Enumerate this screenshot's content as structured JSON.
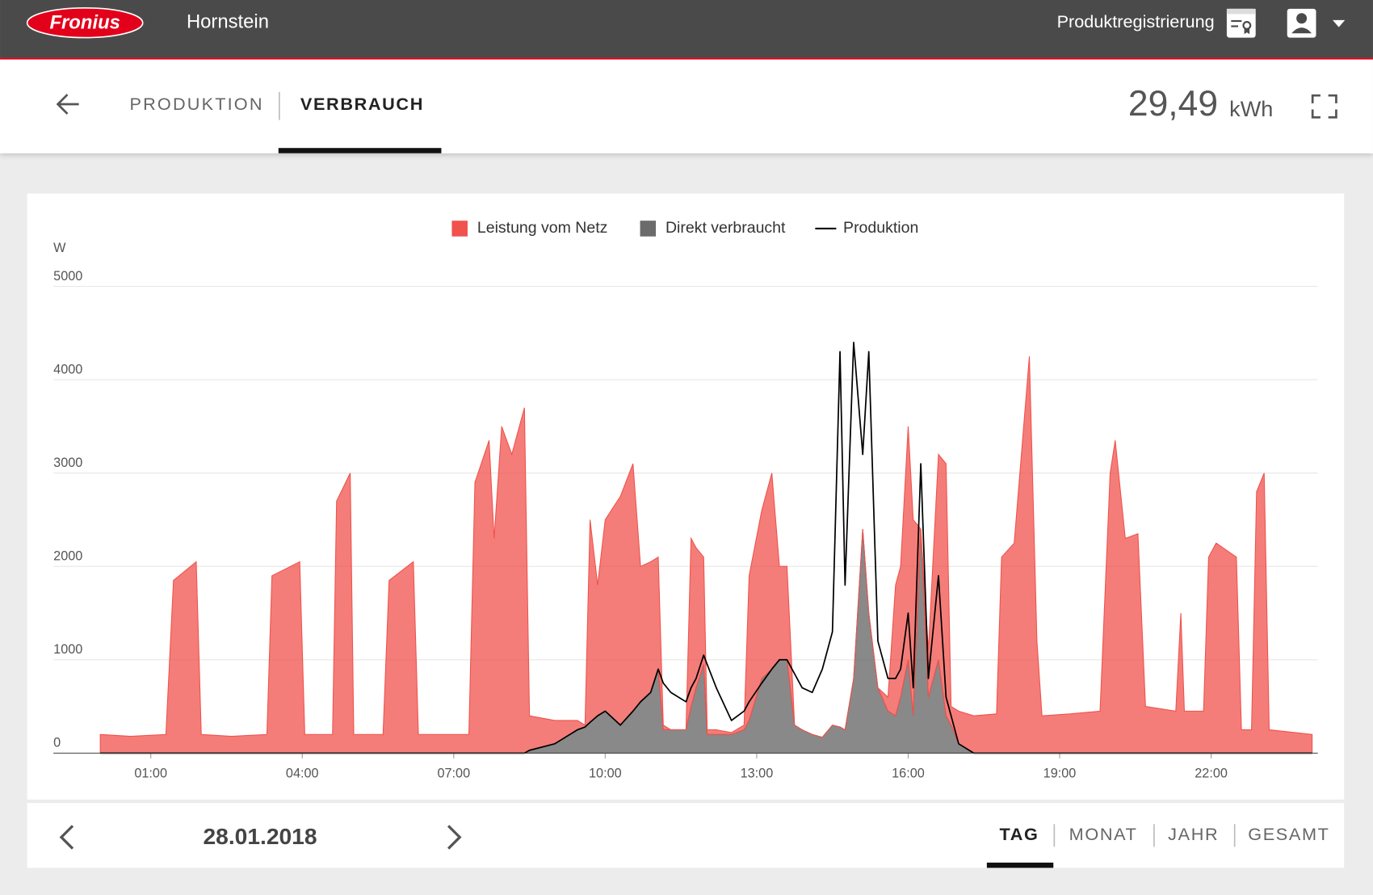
{
  "header": {
    "logo": "Fronius",
    "location": "Hornstein",
    "registration": "Produktregistrierung"
  },
  "tabs": [
    "PRODUKTION",
    "VERBRAUCH"
  ],
  "total": {
    "value": "29,49",
    "unit": "kWh"
  },
  "chart_data": {
    "type": "area",
    "y_label": "W",
    "x": [
      0,
      0.6,
      1.3,
      1.45,
      1.9,
      2.0,
      2.6,
      3.3,
      3.4,
      3.95,
      4.05,
      4.6,
      4.68,
      4.95,
      5.02,
      5.6,
      5.72,
      6.2,
      6.3,
      7.3,
      7.42,
      7.7,
      7.8,
      7.95,
      8.15,
      8.4,
      8.5,
      9.0,
      9.45,
      9.6,
      9.7,
      9.85,
      10.0,
      10.3,
      10.55,
      10.7,
      10.9,
      11.05,
      11.15,
      11.3,
      11.6,
      11.7,
      11.8,
      11.95,
      12.02,
      12.2,
      12.5,
      12.75,
      12.85,
      13.1,
      13.3,
      13.45,
      13.6,
      13.75,
      13.9,
      14.1,
      14.3,
      14.5,
      14.65,
      14.75,
      14.92,
      15.1,
      15.22,
      15.4,
      15.6,
      15.75,
      15.85,
      16.0,
      16.1,
      16.25,
      16.4,
      16.6,
      16.75,
      16.85,
      17.0,
      17.3,
      17.75,
      17.85,
      18.1,
      18.4,
      18.55,
      18.65,
      19.2,
      19.8,
      20.0,
      20.1,
      20.3,
      20.55,
      20.7,
      21.3,
      21.4,
      21.47,
      21.85,
      21.95,
      22.1,
      22.5,
      22.6,
      22.8,
      22.9,
      23.05,
      23.15,
      24
    ],
    "series": [
      {
        "name": "Leistung vom Netz",
        "color": "#f0524c",
        "kind": "area",
        "values": [
          200,
          180,
          200,
          1850,
          2050,
          200,
          180,
          200,
          1900,
          2050,
          200,
          200,
          2700,
          3000,
          200,
          200,
          1850,
          2050,
          200,
          200,
          2900,
          3350,
          2300,
          3500,
          3200,
          3700,
          370,
          250,
          100,
          20,
          2170,
          1400,
          2050,
          2450,
          2650,
          1450,
          1400,
          1200,
          50,
          0,
          0,
          1800,
          1500,
          1150,
          50,
          50,
          20,
          50,
          1550,
          1800,
          2100,
          1000,
          1000,
          0,
          0,
          0,
          0,
          0,
          0,
          0,
          0,
          0,
          0,
          0,
          150,
          1400,
          1400,
          2500,
          2100,
          0,
          500,
          2200,
          2700,
          200,
          350,
          400,
          420,
          2100,
          2250,
          4250,
          1200,
          400,
          420,
          450,
          3000,
          3350,
          2300,
          2350,
          500,
          450,
          1500,
          450,
          450,
          2100,
          2250,
          2100,
          250,
          250,
          2800,
          3000,
          250,
          200
        ]
      },
      {
        "name": "Direkt verbraucht",
        "color": "#6b6b6b",
        "kind": "area",
        "values": [
          0,
          0,
          0,
          0,
          0,
          0,
          0,
          0,
          0,
          0,
          0,
          0,
          0,
          0,
          0,
          0,
          0,
          0,
          0,
          0,
          0,
          0,
          0,
          0,
          0,
          0,
          30,
          100,
          250,
          280,
          330,
          400,
          450,
          300,
          450,
          550,
          650,
          900,
          250,
          250,
          250,
          500,
          700,
          950,
          200,
          200,
          200,
          250,
          350,
          800,
          900,
          1000,
          1000,
          300,
          250,
          200,
          170,
          300,
          280,
          250,
          800,
          2400,
          1500,
          700,
          450,
          400,
          600,
          1000,
          400,
          2400,
          600,
          1000,
          400,
          300,
          100,
          0,
          0,
          0,
          0,
          0,
          0,
          0,
          0,
          0,
          0,
          0,
          0,
          0,
          0,
          0,
          0,
          0,
          0,
          0,
          0,
          0,
          0,
          0,
          0,
          0,
          0,
          0
        ]
      },
      {
        "name": "Produktion",
        "color": "#000000",
        "kind": "line",
        "values": [
          0,
          0,
          0,
          0,
          0,
          0,
          0,
          0,
          0,
          0,
          0,
          0,
          0,
          0,
          0,
          0,
          0,
          0,
          0,
          0,
          0,
          0,
          0,
          0,
          0,
          0,
          30,
          100,
          250,
          280,
          330,
          400,
          450,
          300,
          450,
          550,
          650,
          900,
          750,
          650,
          550,
          700,
          800,
          1050,
          950,
          700,
          350,
          450,
          550,
          750,
          900,
          1000,
          1000,
          850,
          700,
          650,
          900,
          1300,
          4300,
          1800,
          4400,
          3200,
          4300,
          1200,
          800,
          800,
          900,
          1500,
          700,
          3100,
          800,
          1900,
          600,
          400,
          100,
          0,
          0,
          0,
          0,
          0,
          0,
          0,
          0,
          0,
          0,
          0,
          0,
          0,
          0,
          0,
          0,
          0,
          0,
          0,
          0,
          0,
          0,
          0,
          0,
          0,
          0,
          0
        ]
      }
    ],
    "xlim": [
      0,
      24
    ],
    "xticks": [
      {
        "value": 1,
        "label": "01:00"
      },
      {
        "value": 4,
        "label": "04:00"
      },
      {
        "value": 7,
        "label": "07:00"
      },
      {
        "value": 10,
        "label": "10:00"
      },
      {
        "value": 13,
        "label": "13:00"
      },
      {
        "value": 16,
        "label": "16:00"
      },
      {
        "value": 19,
        "label": "19:00"
      },
      {
        "value": 22,
        "label": "22:00"
      }
    ],
    "ylim": [
      0,
      5000
    ],
    "yticks": [
      0,
      1000,
      2000,
      3000,
      4000,
      5000
    ],
    "grid": true,
    "legend": "top"
  },
  "footer": {
    "date": "28.01.2018",
    "periods": [
      "TAG",
      "MONAT",
      "JAHR",
      "GESAMT"
    ]
  }
}
